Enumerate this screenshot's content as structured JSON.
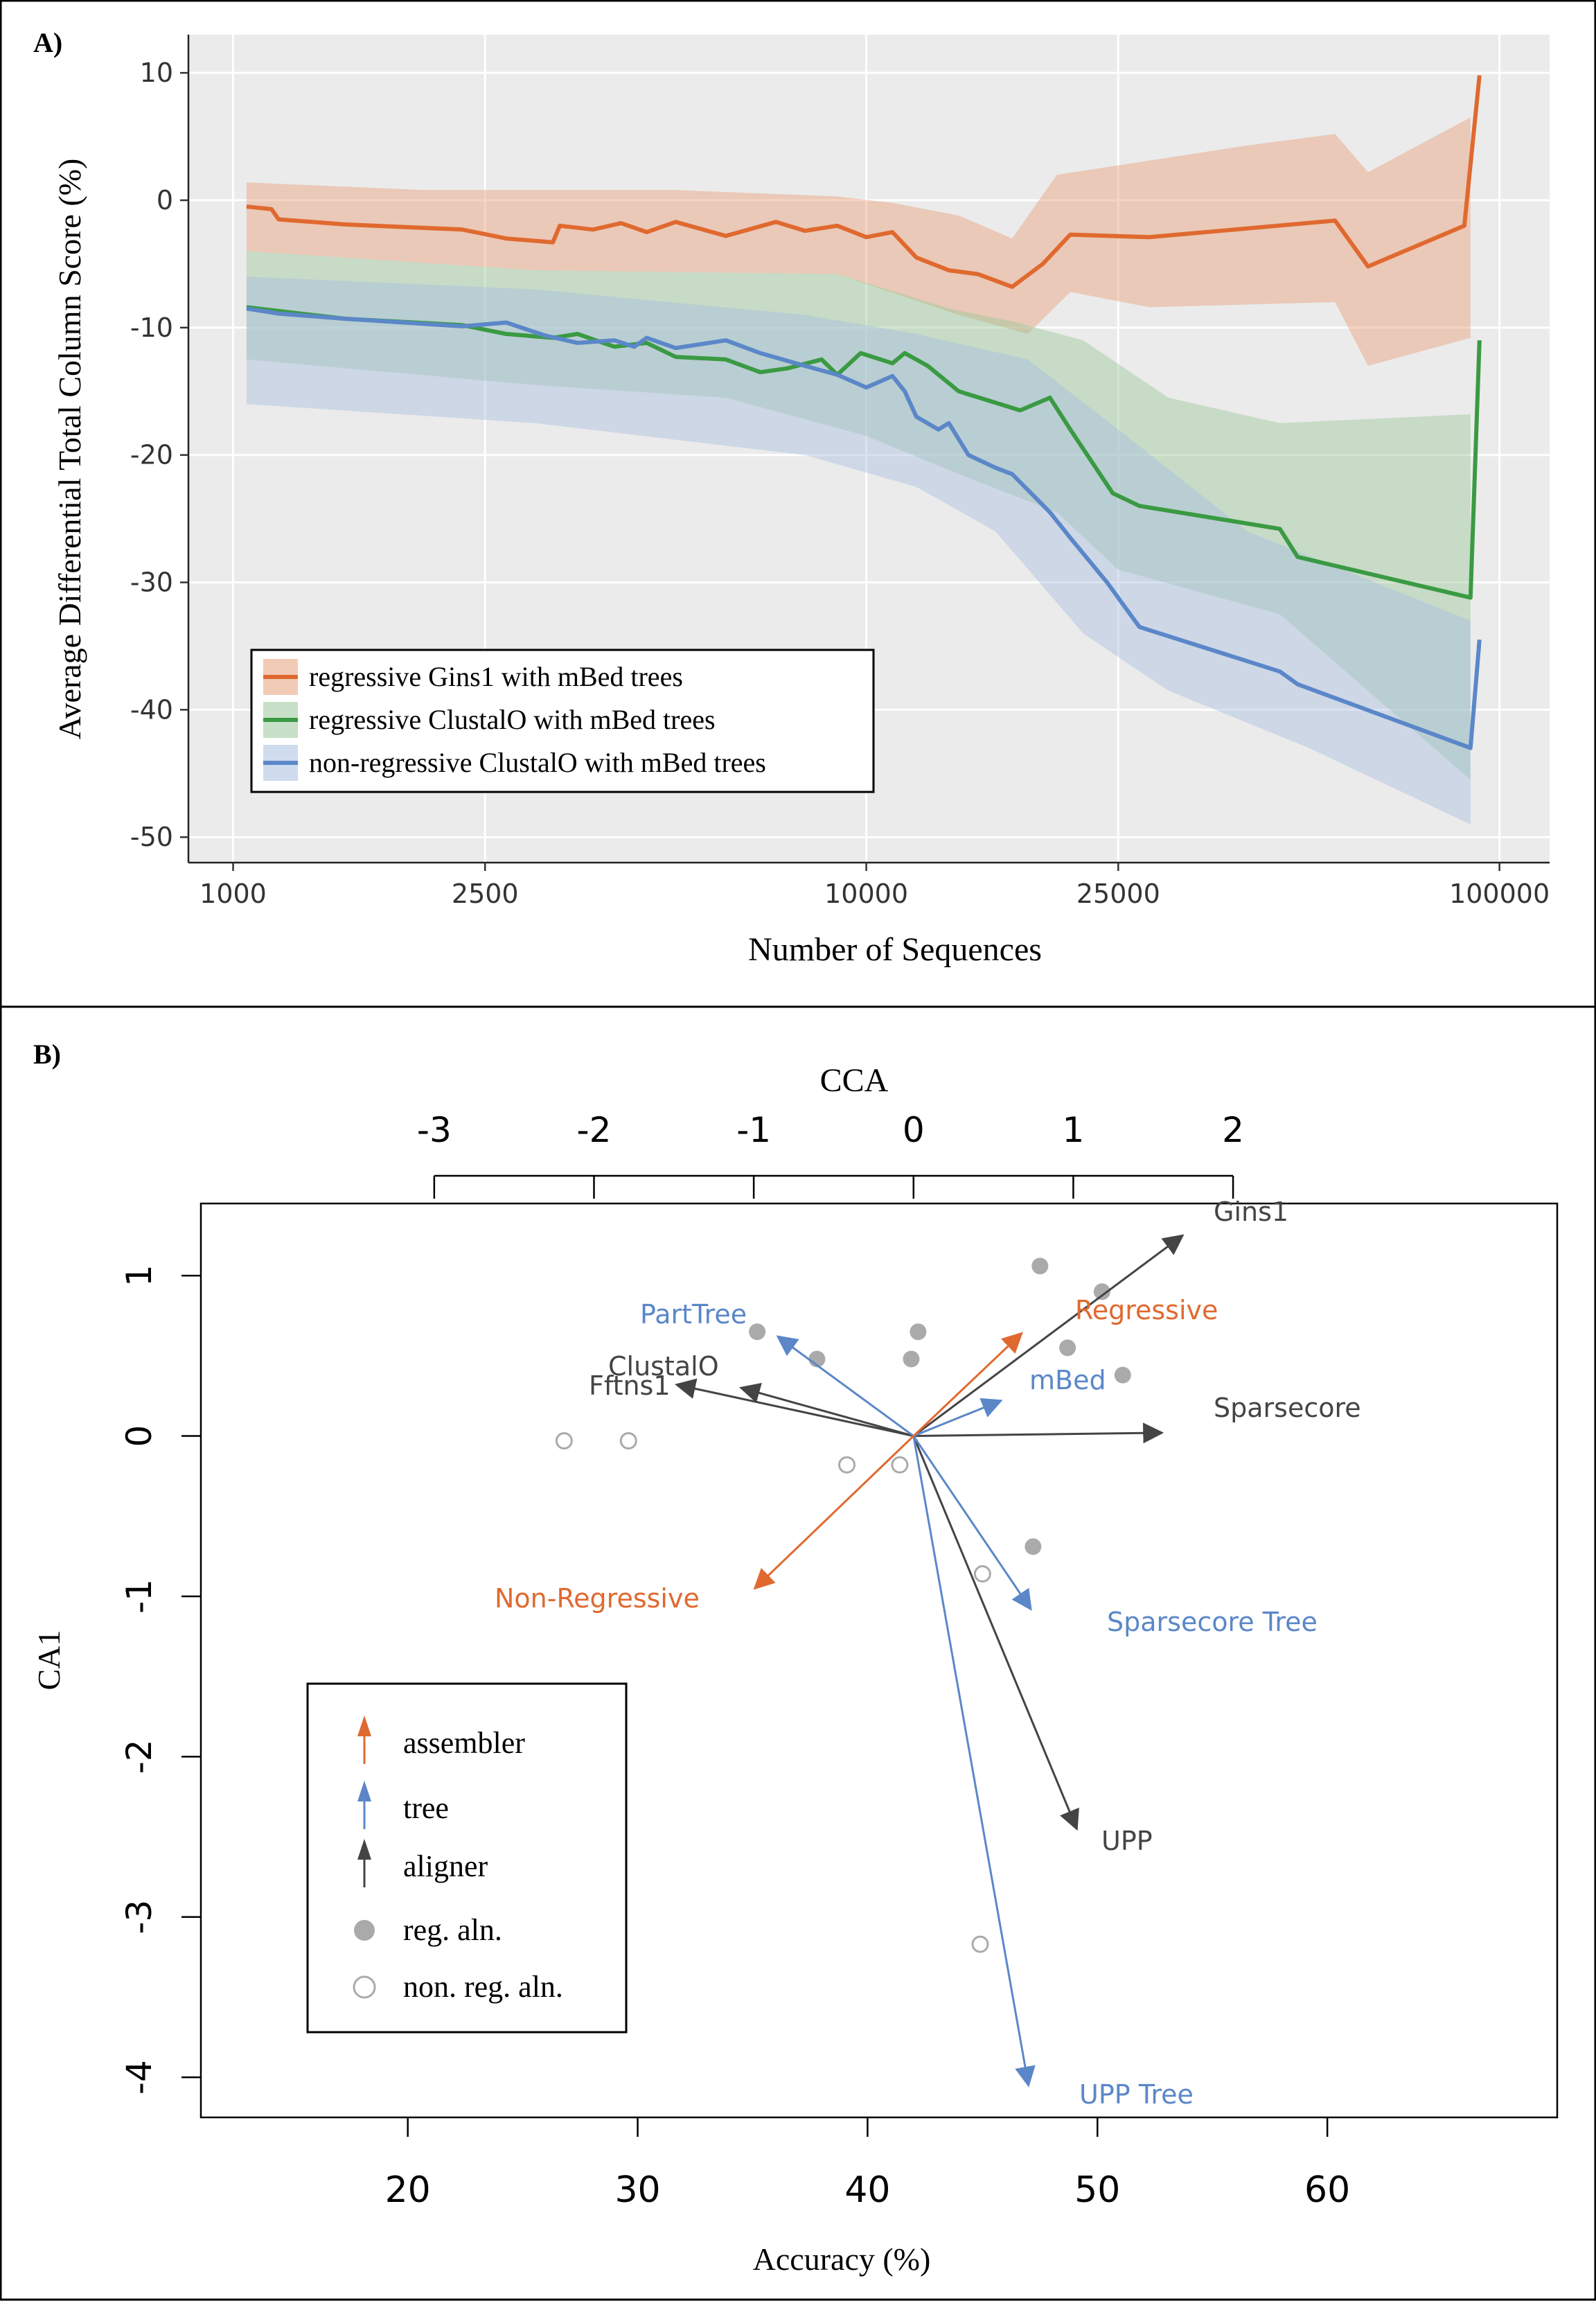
{
  "panel_a": {
    "label": "A)",
    "chart_data": {
      "type": "line",
      "xlabel": "Number of Sequences",
      "ylabel": "Average Differential Total Column Score (%)",
      "x_scale": "log",
      "xlim": [
        850,
        120000
      ],
      "ylim": [
        -52,
        13
      ],
      "x_ticks": [
        1000,
        2500,
        10000,
        25000,
        100000
      ],
      "x_tick_labels": [
        "1000",
        "2500",
        "10000",
        "25000",
        "100000"
      ],
      "y_ticks": [
        10,
        0,
        -10,
        -20,
        -30,
        -40,
        -50
      ],
      "y_tick_labels": [
        "10",
        "0",
        "-10",
        "-20",
        "-30",
        "-40",
        "-50"
      ],
      "grid": true,
      "legend_position": "bottom-left",
      "series": [
        {
          "name": "regressive Gins1 with mBed trees",
          "color": "#e0692f",
          "band_color": "#e8a07a",
          "points": [
            [
              1050,
              -0.5
            ],
            [
              1150,
              -0.7
            ],
            [
              1180,
              -1.5
            ],
            [
              1500,
              -1.9
            ],
            [
              2300,
              -2.3
            ],
            [
              2700,
              -3.0
            ],
            [
              3200,
              -3.3
            ],
            [
              3280,
              -2.0
            ],
            [
              3700,
              -2.3
            ],
            [
              4100,
              -1.8
            ],
            [
              4500,
              -2.5
            ],
            [
              5000,
              -1.7
            ],
            [
              6000,
              -2.8
            ],
            [
              7200,
              -1.7
            ],
            [
              8000,
              -2.4
            ],
            [
              9000,
              -2.0
            ],
            [
              10000,
              -2.9
            ],
            [
              11000,
              -2.5
            ],
            [
              12000,
              -4.5
            ],
            [
              13500,
              -5.5
            ],
            [
              15000,
              -5.8
            ],
            [
              17000,
              -6.8
            ],
            [
              19000,
              -5.0
            ],
            [
              21000,
              -2.7
            ],
            [
              28000,
              -2.9
            ],
            [
              55000,
              -1.6
            ],
            [
              62000,
              -5.2
            ],
            [
              88000,
              -2.0
            ],
            [
              93000,
              9.8
            ]
          ],
          "upper": [
            [
              1050,
              1.4
            ],
            [
              2000,
              0.8
            ],
            [
              5000,
              0.8
            ],
            [
              9000,
              0.3
            ],
            [
              11000,
              -0.2
            ],
            [
              14000,
              -1.2
            ],
            [
              17000,
              -3.0
            ],
            [
              20000,
              2.0
            ],
            [
              40000,
              4.3
            ],
            [
              55000,
              5.2
            ],
            [
              62000,
              2.2
            ],
            [
              90000,
              6.5
            ]
          ],
          "lower": [
            [
              1050,
              -4.0
            ],
            [
              3000,
              -5.5
            ],
            [
              9000,
              -5.8
            ],
            [
              14000,
              -9.0
            ],
            [
              18000,
              -10.5
            ],
            [
              21000,
              -7.2
            ],
            [
              28000,
              -8.4
            ],
            [
              55000,
              -8.0
            ],
            [
              62000,
              -13.0
            ],
            [
              90000,
              -10.8
            ]
          ]
        },
        {
          "name": "regressive ClustalO with mBed trees",
          "color": "#3a9a43",
          "band_color": "#9cc79a",
          "points": [
            [
              1050,
              -8.4
            ],
            [
              1180,
              -8.7
            ],
            [
              1500,
              -9.3
            ],
            [
              2300,
              -9.8
            ],
            [
              2700,
              -10.5
            ],
            [
              3200,
              -10.8
            ],
            [
              3500,
              -10.5
            ],
            [
              4000,
              -11.5
            ],
            [
              4500,
              -11.2
            ],
            [
              5000,
              -12.3
            ],
            [
              6000,
              -12.5
            ],
            [
              6800,
              -13.5
            ],
            [
              7500,
              -13.2
            ],
            [
              8500,
              -12.5
            ],
            [
              9000,
              -13.7
            ],
            [
              9800,
              -12.0
            ],
            [
              11000,
              -12.8
            ],
            [
              11500,
              -12.0
            ],
            [
              12500,
              -13.0
            ],
            [
              14000,
              -15.0
            ],
            [
              17500,
              -16.5
            ],
            [
              19500,
              -15.5
            ],
            [
              21000,
              -18.0
            ],
            [
              24500,
              -23.0
            ],
            [
              27000,
              -24.0
            ],
            [
              45000,
              -25.8
            ],
            [
              48000,
              -28.0
            ],
            [
              90000,
              -31.2
            ],
            [
              93000,
              -11.0
            ]
          ],
          "upper": [
            [
              1050,
              -4.0
            ],
            [
              3000,
              -5.5
            ],
            [
              9000,
              -5.8
            ],
            [
              13500,
              -8.5
            ],
            [
              17000,
              -9.5
            ],
            [
              22000,
              -11.0
            ],
            [
              30000,
              -15.5
            ],
            [
              45000,
              -17.5
            ],
            [
              90000,
              -16.8
            ]
          ],
          "lower": [
            [
              1050,
              -12.5
            ],
            [
              3000,
              -14.5
            ],
            [
              6000,
              -15.5
            ],
            [
              10000,
              -18.5
            ],
            [
              14000,
              -21.5
            ],
            [
              20000,
              -24.5
            ],
            [
              25000,
              -29.0
            ],
            [
              45000,
              -32.5
            ],
            [
              90000,
              -45.5
            ]
          ]
        },
        {
          "name": "non-regressive ClustalO with mBed trees",
          "color": "#5b87c9",
          "band_color": "#a8bfe0",
          "points": [
            [
              1050,
              -8.5
            ],
            [
              1180,
              -8.9
            ],
            [
              1500,
              -9.3
            ],
            [
              2300,
              -9.9
            ],
            [
              2700,
              -9.6
            ],
            [
              3100,
              -10.6
            ],
            [
              3500,
              -11.2
            ],
            [
              4000,
              -11.0
            ],
            [
              4300,
              -11.5
            ],
            [
              4500,
              -10.8
            ],
            [
              5000,
              -11.6
            ],
            [
              6000,
              -11.0
            ],
            [
              6800,
              -12.0
            ],
            [
              8000,
              -13.0
            ],
            [
              9000,
              -13.7
            ],
            [
              10000,
              -14.7
            ],
            [
              11000,
              -13.8
            ],
            [
              11500,
              -15.0
            ],
            [
              12000,
              -17.0
            ],
            [
              13000,
              -18.0
            ],
            [
              13500,
              -17.5
            ],
            [
              14500,
              -20.0
            ],
            [
              16000,
              -21.0
            ],
            [
              17000,
              -21.5
            ],
            [
              19500,
              -24.5
            ],
            [
              21000,
              -26.5
            ],
            [
              24000,
              -30.0
            ],
            [
              27000,
              -33.5
            ],
            [
              45000,
              -37.0
            ],
            [
              48000,
              -38.0
            ],
            [
              90000,
              -43.0
            ],
            [
              93000,
              -34.5
            ]
          ],
          "upper": [
            [
              1050,
              -6.0
            ],
            [
              3000,
              -7.0
            ],
            [
              8000,
              -9.0
            ],
            [
              12000,
              -10.5
            ],
            [
              18000,
              -12.5
            ],
            [
              25000,
              -18.0
            ],
            [
              40000,
              -26.0
            ],
            [
              90000,
              -33.0
            ]
          ],
          "lower": [
            [
              1050,
              -16.0
            ],
            [
              3000,
              -17.5
            ],
            [
              8000,
              -20.0
            ],
            [
              12000,
              -22.5
            ],
            [
              16000,
              -26.0
            ],
            [
              22000,
              -34.0
            ],
            [
              30000,
              -38.5
            ],
            [
              50000,
              -43.0
            ],
            [
              90000,
              -49.0
            ]
          ]
        }
      ]
    }
  },
  "panel_b": {
    "label": "B)",
    "chart_data": {
      "type": "scatter",
      "title": "CCA",
      "xlabel": "Accuracy (%)",
      "ylabel": "CA1",
      "xlim": [
        11,
        70
      ],
      "ylim": [
        -4.25,
        1.45
      ],
      "x_ticks": [
        20,
        30,
        40,
        50,
        60
      ],
      "x_tick_labels": [
        "20",
        "30",
        "40",
        "50",
        "60"
      ],
      "y_ticks": [
        1,
        0,
        -1,
        -2,
        -3,
        -4
      ],
      "y_tick_labels": [
        "1",
        "0",
        "-1",
        "-2",
        "-3",
        "-4"
      ],
      "top_axis_ticks": [
        -3,
        -2,
        -1,
        0,
        1,
        2
      ],
      "top_axis_tick_labels": [
        "-3",
        "-2",
        "-1",
        "0",
        "1",
        "2"
      ],
      "legend_position": "bottom-left",
      "origin": [
        42,
        0
      ],
      "arrows": [
        {
          "label": "Gins1",
          "group": "aligner",
          "end": [
            53.7,
            1.25
          ]
        },
        {
          "label": "Sparsecore",
          "group": "aligner",
          "end": [
            52.8,
            0.02
          ]
        },
        {
          "label": "ClustalO",
          "group": "aligner",
          "end": [
            34.5,
            0.3
          ]
        },
        {
          "label": "Fftns1",
          "group": "aligner",
          "end": [
            31.7,
            0.32
          ]
        },
        {
          "label": "UPP",
          "group": "aligner",
          "end": [
            49.1,
            -2.45
          ]
        },
        {
          "label": "PartTree",
          "group": "tree",
          "end": [
            36.1,
            0.62
          ]
        },
        {
          "label": "mBed",
          "group": "tree",
          "end": [
            45.8,
            0.22
          ]
        },
        {
          "label": "Sparsecore Tree",
          "group": "tree",
          "end": [
            47.1,
            -1.08
          ]
        },
        {
          "label": "UPP Tree",
          "group": "tree",
          "end": [
            47.0,
            -4.05
          ]
        },
        {
          "label": "Regressive",
          "group": "assembler",
          "end": [
            46.7,
            0.64
          ]
        },
        {
          "label": "Non-Regressive",
          "group": "assembler",
          "end": [
            35.1,
            -0.95
          ]
        }
      ],
      "points_reg": [
        [
          47.5,
          1.06
        ],
        [
          50.2,
          0.9
        ],
        [
          48.7,
          0.55
        ],
        [
          51.1,
          0.38
        ],
        [
          35.2,
          0.65
        ],
        [
          37.8,
          0.48
        ],
        [
          42.2,
          0.65
        ],
        [
          41.9,
          0.48
        ],
        [
          47.2,
          -0.69
        ]
      ],
      "points_nonreg": [
        [
          26.8,
          -0.03
        ],
        [
          29.6,
          -0.03
        ],
        [
          39.1,
          -0.18
        ],
        [
          41.4,
          -0.18
        ],
        [
          45.0,
          -0.86
        ],
        [
          44.9,
          -3.17
        ]
      ],
      "legend": {
        "assembler": "assembler",
        "tree": "tree",
        "aligner": "aligner",
        "reg": "reg. aln.",
        "nonreg": "non. reg. aln."
      },
      "colors": {
        "assembler": "#e0692f",
        "tree": "#5b87c9",
        "aligner": "#444444",
        "reg_point": "#aaaaaa",
        "nonreg_point": "#aaaaaa"
      }
    }
  }
}
